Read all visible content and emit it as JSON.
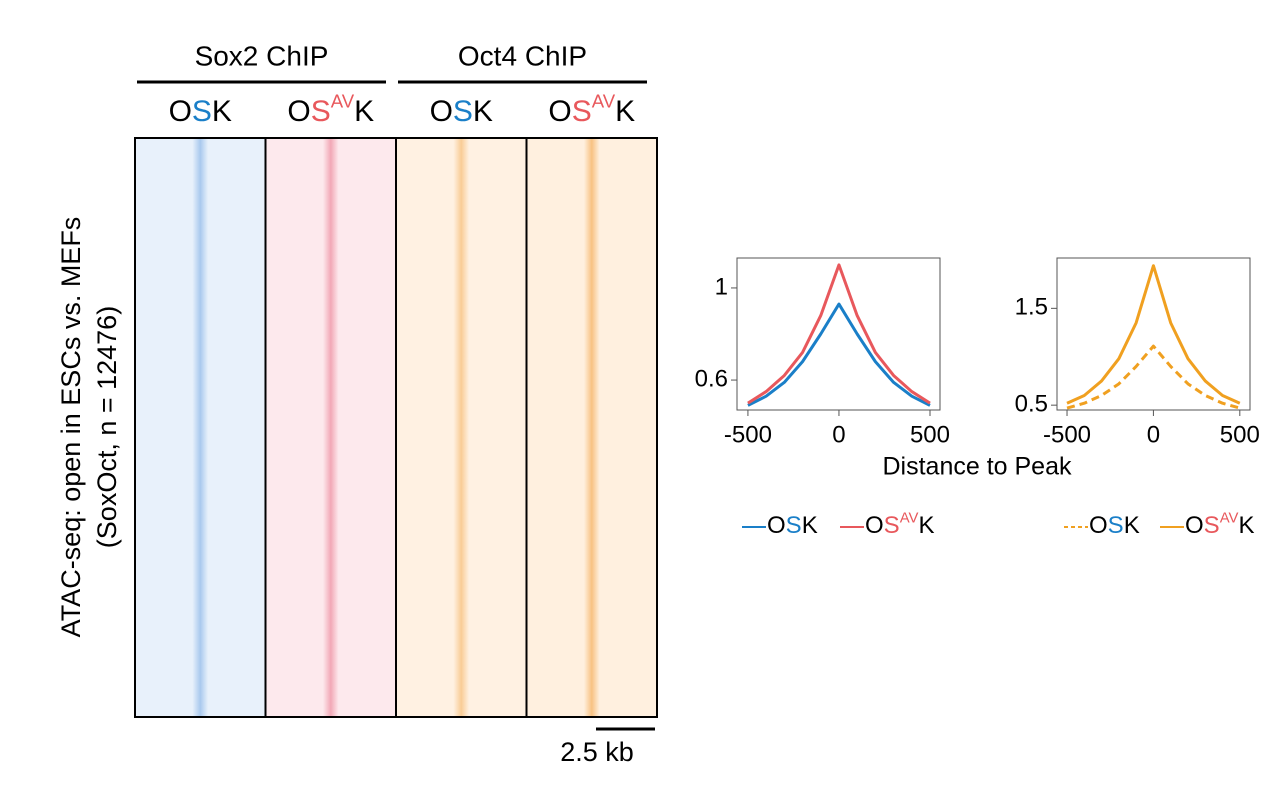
{
  "heatmap": {
    "groups": [
      {
        "title": "Sox2 ChIP"
      },
      {
        "title": "Oct4 ChIP"
      }
    ],
    "ylabel": [
      "ATAC-seq: open in ESCs vs. MEFs",
      "(SoxOct, n = 12476)"
    ],
    "scale_bar": "2.5 kb",
    "panels": [
      {
        "label": [
          {
            "text": "O",
            "color": "#000000"
          },
          {
            "text": "S",
            "color": "#1a7fc8"
          },
          {
            "text": "K",
            "color": "#000000"
          }
        ],
        "color": "#e8f1fb",
        "peak_color": "#a9c9ee"
      },
      {
        "label": [
          {
            "text": "O",
            "color": "#000000"
          },
          {
            "text": "S",
            "color": "#e8585c"
          },
          {
            "text": "AV",
            "color": "#e8585c",
            "sup": true
          },
          {
            "text": "K",
            "color": "#000000"
          }
        ],
        "color": "#fde9ed",
        "peak_color": "#f2a8b6"
      },
      {
        "label": [
          {
            "text": "O",
            "color": "#000000"
          },
          {
            "text": "S",
            "color": "#1a7fc8"
          },
          {
            "text": "K",
            "color": "#000000"
          }
        ],
        "color": "#fff1e2",
        "peak_color": "#f9cc95"
      },
      {
        "label": [
          {
            "text": "O",
            "color": "#000000"
          },
          {
            "text": "S",
            "color": "#e8585c"
          },
          {
            "text": "AV",
            "color": "#e8585c",
            "sup": true
          },
          {
            "text": "K",
            "color": "#000000"
          }
        ],
        "color": "#fff0df",
        "peak_color": "#f8c282"
      }
    ]
  },
  "chart_data": [
    {
      "type": "line",
      "xlabel": "Distance to Peak",
      "x": [
        -500,
        -400,
        -300,
        -200,
        -100,
        0,
        100,
        200,
        300,
        400,
        500
      ],
      "xlim": [
        -560,
        555
      ],
      "xticks": [
        -500,
        0,
        500
      ],
      "ylim": [
        0.47,
        1.13
      ],
      "yticks": [
        0.6,
        1
      ],
      "series": [
        {
          "name": [
            {
              "text": "O",
              "color": "#000000"
            },
            {
              "text": "S",
              "color": "#1a7fc8"
            },
            {
              "text": "K",
              "color": "#000000"
            }
          ],
          "color": "#1a7fc8",
          "dash": false,
          "values": [
            0.49,
            0.53,
            0.59,
            0.68,
            0.8,
            0.93,
            0.8,
            0.68,
            0.59,
            0.53,
            0.49
          ]
        },
        {
          "name": [
            {
              "text": "O",
              "color": "#000000"
            },
            {
              "text": "S",
              "color": "#e8585c"
            },
            {
              "text": "AV",
              "color": "#e8585c",
              "sup": true
            },
            {
              "text": "K",
              "color": "#000000"
            }
          ],
          "color": "#e8585c",
          "dash": false,
          "values": [
            0.5,
            0.55,
            0.62,
            0.72,
            0.88,
            1.1,
            0.88,
            0.72,
            0.62,
            0.55,
            0.5
          ]
        }
      ]
    },
    {
      "type": "line",
      "x": [
        -500,
        -400,
        -300,
        -200,
        -100,
        0,
        100,
        200,
        300,
        400,
        500
      ],
      "xlim": [
        -558,
        559
      ],
      "xticks": [
        -500,
        0,
        500
      ],
      "ylim": [
        0.45,
        2.02
      ],
      "yticks": [
        0.5,
        1.5
      ],
      "series": [
        {
          "name": [
            {
              "text": "O",
              "color": "#000000"
            },
            {
              "text": "S",
              "color": "#1a7fc8"
            },
            {
              "text": "K",
              "color": "#000000"
            }
          ],
          "color": "#f0a020",
          "dash": true,
          "values": [
            0.47,
            0.52,
            0.6,
            0.72,
            0.9,
            1.11,
            0.9,
            0.72,
            0.6,
            0.52,
            0.47
          ]
        },
        {
          "name": [
            {
              "text": "O",
              "color": "#000000"
            },
            {
              "text": "S",
              "color": "#e8585c"
            },
            {
              "text": "AV",
              "color": "#e8585c",
              "sup": true
            },
            {
              "text": "K",
              "color": "#000000"
            }
          ],
          "color": "#f0a020",
          "dash": false,
          "values": [
            0.52,
            0.6,
            0.75,
            0.98,
            1.35,
            1.94,
            1.35,
            0.98,
            0.75,
            0.6,
            0.52
          ]
        }
      ]
    }
  ]
}
